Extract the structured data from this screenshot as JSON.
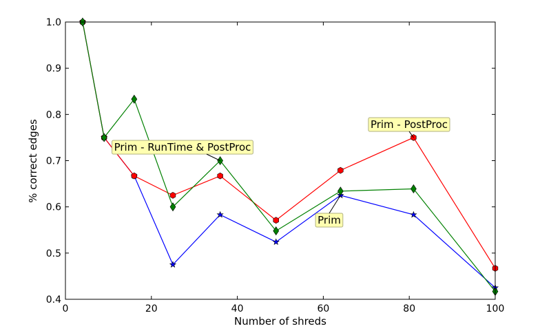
{
  "chart_data": {
    "type": "line",
    "title": "",
    "xlabel": "Number of shreds",
    "ylabel": "% correct edges",
    "xlim": [
      0,
      100
    ],
    "ylim": [
      0.4,
      1.0
    ],
    "x_ticks": [
      0,
      20,
      40,
      60,
      80,
      100
    ],
    "y_ticks": [
      0.4,
      0.5,
      0.6,
      0.7,
      0.8,
      0.9,
      1.0
    ],
    "x_tick_labels": [
      "0",
      "20",
      "40",
      "60",
      "80",
      "100"
    ],
    "y_tick_labels": [
      "0.4",
      "0.5",
      "0.6",
      "0.7",
      "0.8",
      "0.9",
      "1.0"
    ],
    "grid": false,
    "series": [
      {
        "name": "Prim",
        "color": "#0000ff",
        "marker": "star",
        "x": [
          4,
          9,
          16,
          25,
          36,
          49,
          64,
          81,
          100
        ],
        "y": [
          1.0,
          0.75,
          0.667,
          0.475,
          0.583,
          0.524,
          0.625,
          0.583,
          0.425
        ]
      },
      {
        "name": "Prim - PostProc",
        "color": "#ff0000",
        "marker": "hexagon",
        "x": [
          4,
          9,
          16,
          25,
          36,
          49,
          64,
          81,
          100
        ],
        "y": [
          1.0,
          0.75,
          0.667,
          0.625,
          0.667,
          0.571,
          0.679,
          0.75,
          0.467
        ]
      },
      {
        "name": "Prim - RunTime & PostProc",
        "color": "#008000",
        "marker": "diamond",
        "x": [
          4,
          9,
          16,
          25,
          36,
          49,
          64,
          81,
          100
        ],
        "y": [
          1.0,
          0.75,
          0.833,
          0.6,
          0.7,
          0.548,
          0.634,
          0.639,
          0.417
        ]
      }
    ],
    "annotations": [
      {
        "text": "Prim - PostProc",
        "series": 1,
        "point_x": 81,
        "point_y": 0.75
      },
      {
        "text": "Prim - RunTime & PostProc",
        "series": 2,
        "point_x": 36,
        "point_y": 0.7
      },
      {
        "text": "Prim",
        "series": 0,
        "point_x": 64,
        "point_y": 0.625
      }
    ],
    "annotation_box_color": "#ffffb0"
  }
}
